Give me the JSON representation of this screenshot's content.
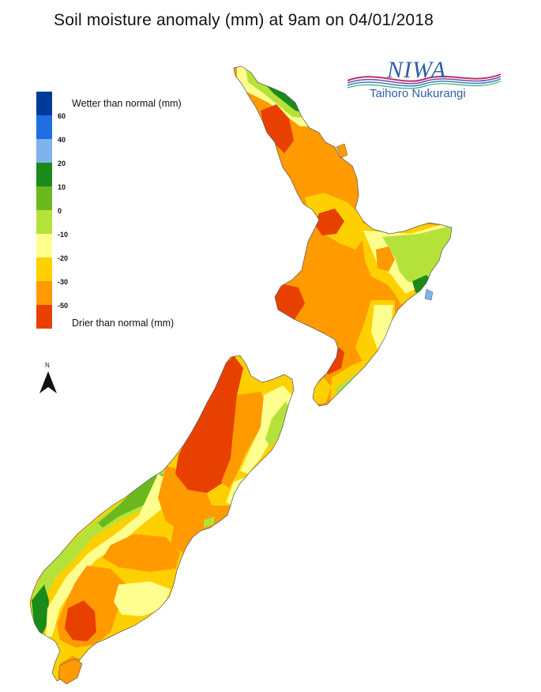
{
  "title": "Soil moisture anomaly (mm) at 9am on 04/01/2018",
  "logo": {
    "name": "NIWA",
    "subtitle": "Taihoro Nukurangi"
  },
  "legend": {
    "top_label": "Wetter than normal (mm)",
    "bottom_label": "Drier than normal (mm)",
    "classes": [
      {
        "color": "#003b9a"
      },
      {
        "color": "#1f6fe0",
        "tick": "60"
      },
      {
        "color": "#7fb2ef",
        "tick": "40"
      },
      {
        "color": "#1a8a1a",
        "tick": "20"
      },
      {
        "color": "#6ab81e",
        "tick": "10"
      },
      {
        "color": "#b5e23a",
        "tick": "0"
      },
      {
        "color": "#ffff90",
        "tick": "-10"
      },
      {
        "color": "#ffd000",
        "tick": "-20"
      },
      {
        "color": "#ff9a00",
        "tick": "-30"
      },
      {
        "color": "#e84000",
        "tick": "-50"
      }
    ]
  },
  "north_label": "N",
  "colors": {
    "very_dry": "#e84000",
    "dry": "#ff9a00",
    "moderately_dry": "#ffd000",
    "slightly_dry": "#ffff90",
    "near_normal": "#b5e23a",
    "slightly_wet": "#6ab81e",
    "wet": "#1a8a1a",
    "wetter": "#7fb2ef"
  }
}
